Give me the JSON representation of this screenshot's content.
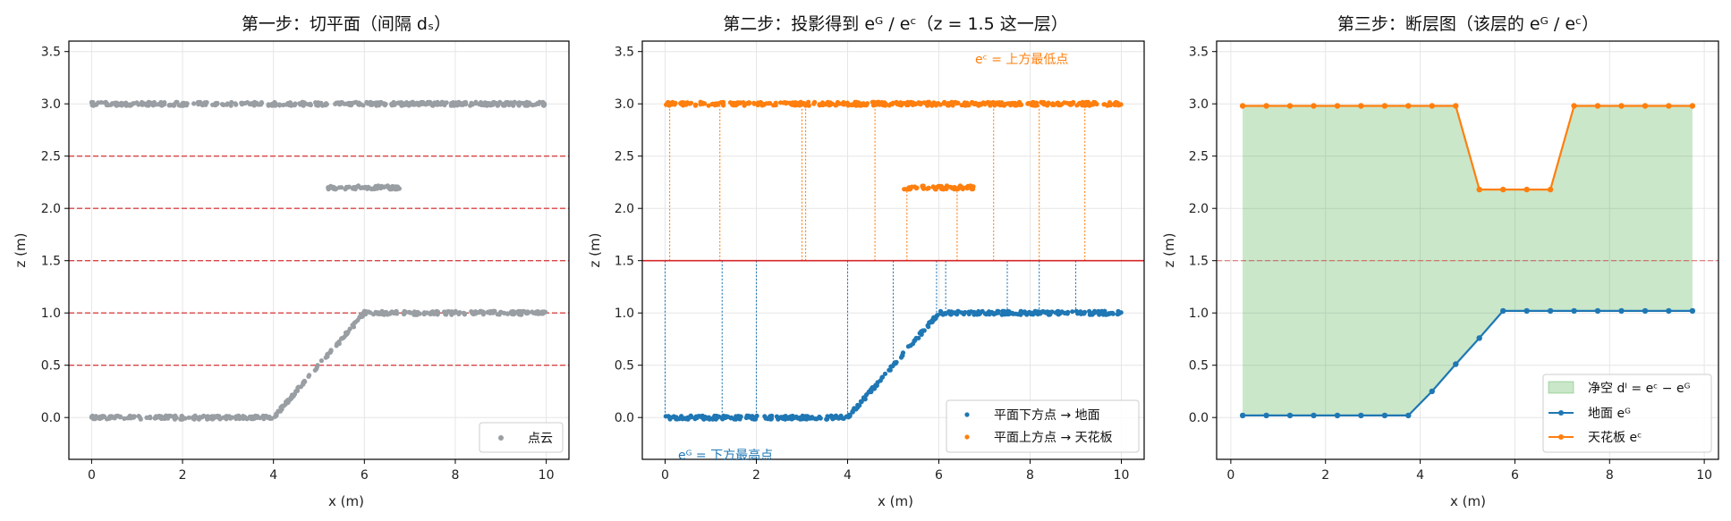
{
  "colors": {
    "cloud": "#999ea3",
    "ground": "#1f77b4",
    "ceiling": "#ff7f0e",
    "slice": "#d62728",
    "fill": "#2ca02c"
  },
  "chart_data": [
    {
      "type": "scatter",
      "title": "第一步：切平面（间隔 dₛ）",
      "xlabel": "x (m)",
      "ylabel": "z (m)",
      "xlim": [
        -0.5,
        10.5
      ],
      "ylim": [
        -0.4,
        3.6
      ],
      "xticks": [
        "0",
        "2",
        "4",
        "6",
        "8",
        "10"
      ],
      "yticks": [
        "0.0",
        "0.5",
        "1.0",
        "1.5",
        "2.0",
        "2.5",
        "3.0",
        "3.5"
      ],
      "grid": true,
      "slice_planes_z": [
        0.5,
        1.0,
        1.5,
        2.0,
        2.5
      ],
      "legend": {
        "placement": "bottom-right",
        "entries": [
          "点云"
        ]
      },
      "segments": [
        {
          "name": "ceiling",
          "x_start": 0,
          "x_end": 10,
          "z_start": 3.0,
          "z_end": 3.0
        },
        {
          "name": "obstacle",
          "x_start": 5.2,
          "x_end": 6.8,
          "z_start": 2.2,
          "z_end": 2.2
        },
        {
          "name": "ground-low",
          "x_start": 0,
          "x_end": 4,
          "z_start": 0.0,
          "z_end": 0.0
        },
        {
          "name": "ramp",
          "x_start": 4,
          "x_end": 6,
          "z_start": 0.0,
          "z_end": 1.0
        },
        {
          "name": "ground-high",
          "x_start": 6,
          "x_end": 10,
          "z_start": 1.0,
          "z_end": 1.0
        }
      ]
    },
    {
      "type": "scatter",
      "title": "第二步：投影得到 eᴳ / eᶜ（z = 1.5 这一层）",
      "xlabel": "x (m)",
      "ylabel": "z (m)",
      "xlim": [
        -0.5,
        10.5
      ],
      "ylim": [
        -0.4,
        3.6
      ],
      "xticks": [
        "0",
        "2",
        "4",
        "6",
        "8",
        "10"
      ],
      "yticks": [
        "0.0",
        "0.5",
        "1.0",
        "1.5",
        "2.0",
        "2.5",
        "3.0",
        "3.5"
      ],
      "grid": true,
      "slice_z": 1.5,
      "legend": {
        "placement": "bottom-right",
        "entries": [
          "平面下方点 → 地面",
          "平面上方点 → 天花板"
        ]
      },
      "annotations": {
        "top": "eᶜ = 上方最低点",
        "bottom": "eᴳ = 下方最高点"
      },
      "ground_projection_x": [
        0.0,
        1.25,
        2.0,
        4.0,
        5.0,
        5.95,
        6.15,
        7.5,
        8.2,
        9.0
      ],
      "ceiling_projection_x": [
        0.1,
        1.2,
        3.0,
        3.08,
        4.6,
        5.3,
        6.4,
        7.2,
        8.2,
        9.2
      ]
    },
    {
      "type": "line",
      "title": "第三步：断层图（该层的 eᴳ / eᶜ）",
      "xlabel": "x (m)",
      "ylabel": "z (m)",
      "xlim": [
        -0.3,
        10.3
      ],
      "ylim": [
        -0.4,
        3.6
      ],
      "xticks": [
        "0",
        "2",
        "4",
        "6",
        "8",
        "10"
      ],
      "yticks": [
        "0.0",
        "0.5",
        "1.0",
        "1.5",
        "2.0",
        "2.5",
        "3.0",
        "3.5"
      ],
      "grid": true,
      "slice_z": 1.5,
      "legend": {
        "placement": "bottom-right",
        "entries": [
          "净空 dᴵ = eᶜ − eᴳ",
          "地面 eᴳ",
          "天花板 eᶜ"
        ]
      },
      "x": [
        0.25,
        0.75,
        1.25,
        1.75,
        2.25,
        2.75,
        3.25,
        3.75,
        4.25,
        4.75,
        5.25,
        5.75,
        6.25,
        6.75,
        7.25,
        7.75,
        8.25,
        8.75,
        9.25,
        9.75
      ],
      "series": [
        {
          "name": "地面 eᴳ",
          "values": [
            0.02,
            0.02,
            0.02,
            0.02,
            0.02,
            0.02,
            0.02,
            0.02,
            0.25,
            0.51,
            0.76,
            1.02,
            1.02,
            1.02,
            1.02,
            1.02,
            1.02,
            1.02,
            1.02,
            1.02
          ]
        },
        {
          "name": "天花板 eᶜ",
          "values": [
            2.98,
            2.98,
            2.98,
            2.98,
            2.98,
            2.98,
            2.98,
            2.98,
            2.98,
            2.98,
            2.18,
            2.18,
            2.18,
            2.18,
            2.98,
            2.98,
            2.98,
            2.98,
            2.98,
            2.98
          ]
        }
      ]
    }
  ]
}
